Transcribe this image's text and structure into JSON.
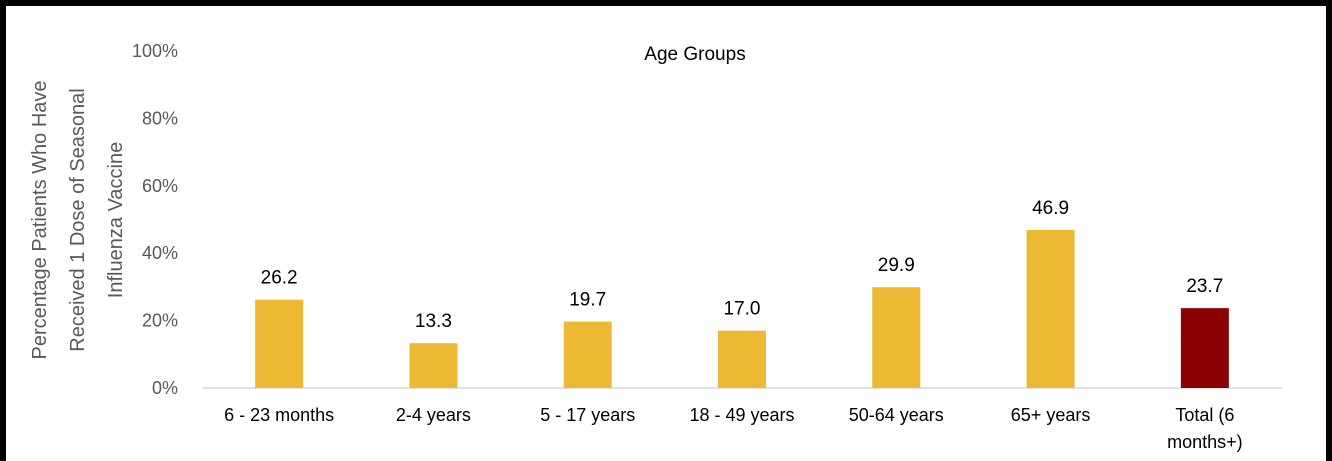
{
  "chart_data": {
    "type": "bar",
    "title": "Age Groups",
    "categories": [
      "6 - 23 months",
      "2-4 years",
      "5 - 17 years",
      "18 - 49 years",
      "50-64 years",
      "65+ years",
      "Total (6 months+)"
    ],
    "category_lines": [
      [
        "6 - 23 months"
      ],
      [
        "2-4 years"
      ],
      [
        "5 - 17 years"
      ],
      [
        "18 - 49 years"
      ],
      [
        "50-64 years"
      ],
      [
        "65+ years"
      ],
      [
        "Total (6",
        "months+)"
      ]
    ],
    "values": [
      26.2,
      13.3,
      19.7,
      17.0,
      29.9,
      46.9,
      23.7
    ],
    "value_labels": [
      "26.2",
      "13.3",
      "19.7",
      "17.0",
      "29.9",
      "46.9",
      "23.7"
    ],
    "ylabel_lines": [
      "Percentage Patients Who Have",
      "Received 1 Dose of Seasonal",
      "Influenza Vaccine"
    ],
    "ylim": [
      0,
      100
    ],
    "yticks": [
      0,
      20,
      40,
      60,
      80,
      100
    ],
    "ytick_labels": [
      "0%",
      "20%",
      "40%",
      "60%",
      "80%",
      "100%"
    ],
    "grid": false,
    "colors": {
      "bar": "#EDB933",
      "highlight": "#8B0000",
      "axis": "#D9D9D9",
      "frame": "#000000"
    },
    "highlight_index": 6
  }
}
